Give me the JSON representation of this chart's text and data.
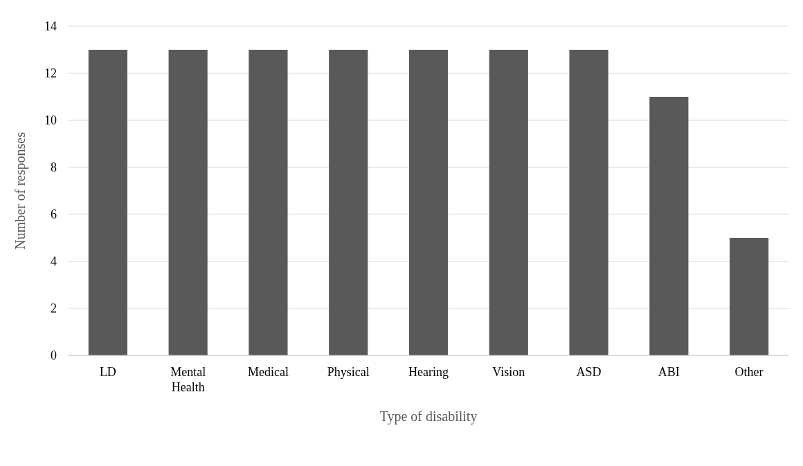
{
  "chart_data": {
    "type": "bar",
    "xlabel": "Type of disability",
    "ylabel": "Number of responses",
    "categories": [
      "LD",
      "Mental Health",
      "Medical",
      "Physical",
      "Hearing",
      "Vision",
      "ASD",
      "ABI",
      "Other"
    ],
    "values": [
      13,
      13,
      13,
      13,
      13,
      13,
      13,
      11,
      5
    ],
    "color": "#595959",
    "ylim": [
      0,
      14
    ],
    "yticks": [
      0,
      2,
      4,
      6,
      8,
      10,
      12,
      14
    ],
    "grid": "y"
  }
}
